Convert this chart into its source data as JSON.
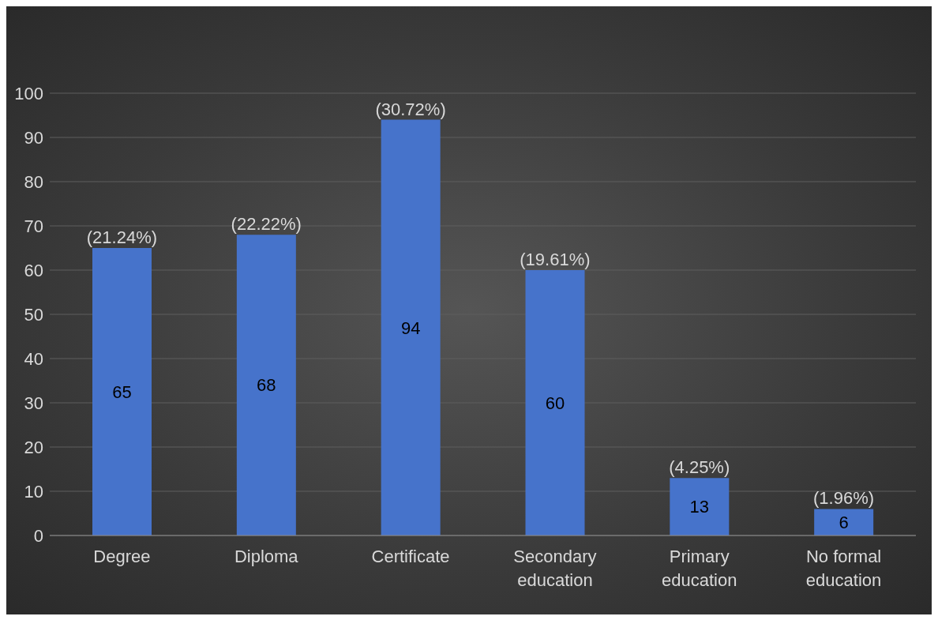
{
  "chart_data": {
    "type": "bar",
    "categories": [
      "Degree",
      "Diploma",
      "Certificate",
      "Secondary education",
      "Primary education",
      "No formal education"
    ],
    "values": [
      65,
      68,
      94,
      60,
      13,
      6
    ],
    "color": "#4673cb",
    "ylim": [
      0,
      100
    ],
    "yticks": [
      0,
      10,
      20,
      30,
      40,
      50,
      60,
      70,
      80,
      90,
      100
    ],
    "grid": "y",
    "data_labels": true,
    "annotations": [
      {
        "text": "(21.24%)",
        "x": "Degree",
        "y": 65
      },
      {
        "text": "(22.22%)",
        "x": "Diploma",
        "y": 68
      },
      {
        "text": "(30.72%)",
        "x": "Certificate",
        "y": 94
      },
      {
        "text": "(19.61%)",
        "x": "Secondary education",
        "y": 60
      },
      {
        "text": "(4.25%)",
        "x": "Primary education",
        "y": 13
      },
      {
        "text": "(1.96%)",
        "x": "No formal education",
        "y": 6
      }
    ]
  }
}
